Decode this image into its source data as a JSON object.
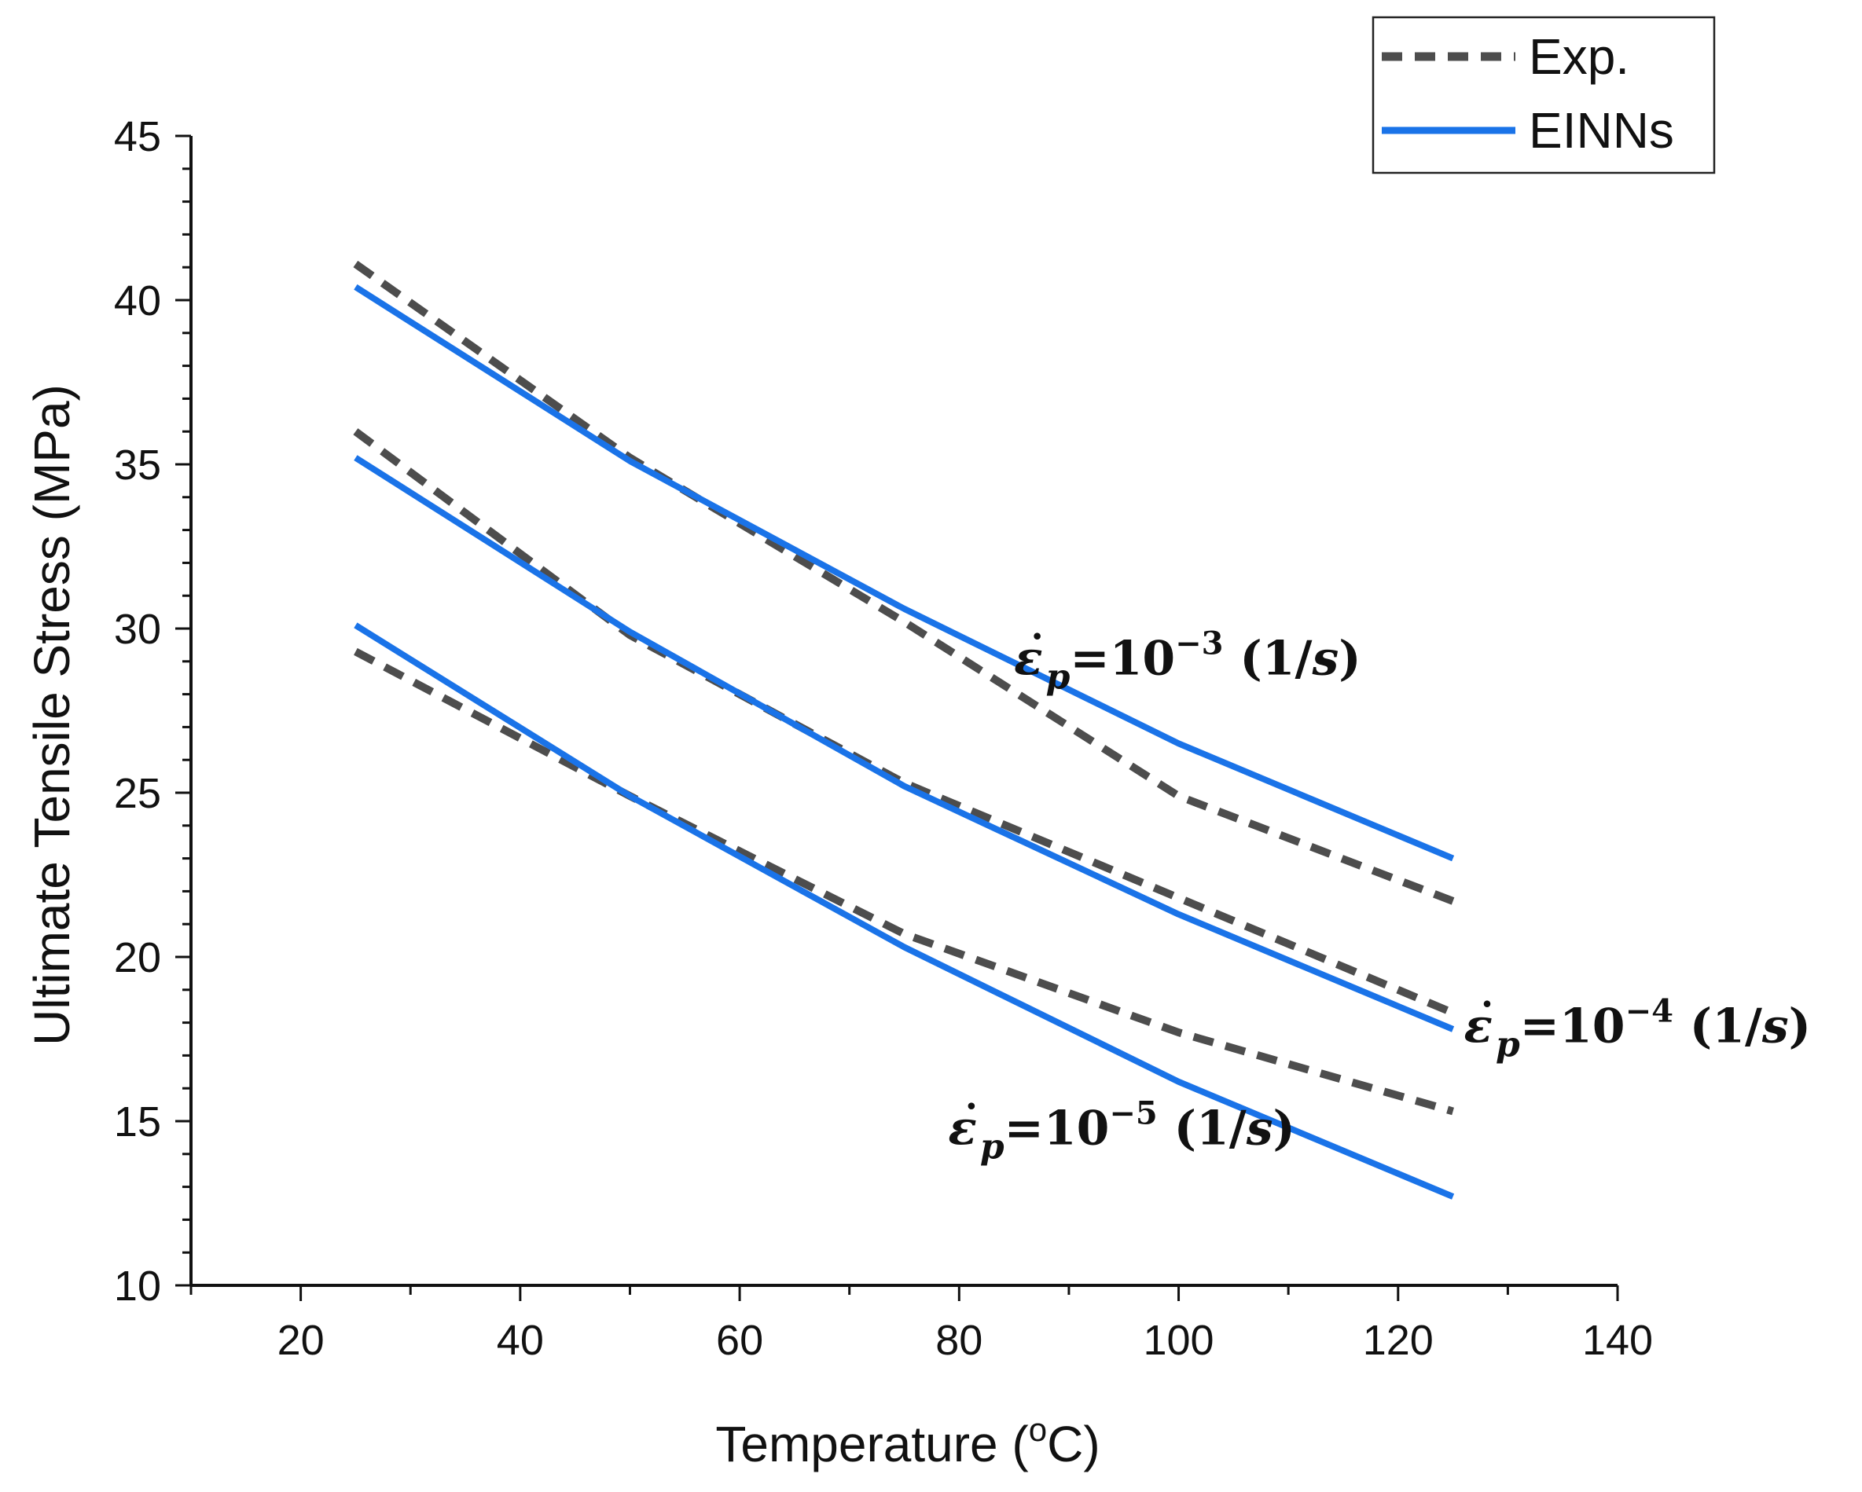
{
  "chart_data": {
    "type": "line",
    "title": "",
    "xlabel": "Temperature (",
    "xlabel_sup": "o",
    "xlabel_unit": "C)",
    "ylabel": "Ultimate Tensile Stress (MPa)",
    "xlim": [
      10,
      140
    ],
    "ylim": [
      10,
      45
    ],
    "xticks": [
      20,
      40,
      60,
      80,
      100,
      120,
      140
    ],
    "yticks": [
      10,
      15,
      20,
      25,
      30,
      35,
      40,
      45
    ],
    "legend": {
      "position": "top-right",
      "entries": [
        {
          "label": "Exp.",
          "style": "dashed",
          "color": "#4d4d4d"
        },
        {
          "label": "EINNs",
          "style": "solid",
          "color": "#1a73e8"
        }
      ]
    },
    "series": [
      {
        "name": "Exp.",
        "group": "10^-3",
        "style": "dashed",
        "color": "#4d4d4d",
        "x": [
          25,
          50,
          75,
          100,
          125
        ],
        "y": [
          41.1,
          35.2,
          30.2,
          24.9,
          21.7
        ]
      },
      {
        "name": "EINNs",
        "group": "10^-3",
        "style": "solid",
        "color": "#1a73e8",
        "x": [
          25,
          50,
          75,
          100,
          125
        ],
        "y": [
          40.4,
          35.1,
          30.6,
          26.5,
          23.0
        ]
      },
      {
        "name": "Exp.",
        "group": "10^-4",
        "style": "dashed",
        "color": "#4d4d4d",
        "x": [
          25,
          50,
          75,
          100,
          125
        ],
        "y": [
          36.0,
          29.8,
          25.3,
          21.8,
          18.3
        ]
      },
      {
        "name": "EINNs",
        "group": "10^-4",
        "style": "solid",
        "color": "#1a73e8",
        "x": [
          25,
          50,
          75,
          100,
          125
        ],
        "y": [
          35.2,
          29.9,
          25.2,
          21.3,
          17.8
        ]
      },
      {
        "name": "Exp.",
        "group": "10^-5",
        "style": "dashed",
        "color": "#4d4d4d",
        "x": [
          25,
          50,
          75,
          100,
          125
        ],
        "y": [
          29.3,
          24.9,
          20.7,
          17.7,
          15.3
        ]
      },
      {
        "name": "EINNs",
        "group": "10^-5",
        "style": "solid",
        "color": "#1a73e8",
        "x": [
          25,
          50,
          75,
          100,
          125
        ],
        "y": [
          30.1,
          24.9,
          20.3,
          16.2,
          12.7
        ]
      }
    ],
    "annotations": [
      {
        "var": "ε",
        "dot": "˙",
        "sub": "p",
        "eq": "=10",
        "exp": "−3",
        "unit": " (1/",
        "unit_var": "s",
        "close": ")",
        "anchor_x": 85,
        "anchor_y": 28.6
      },
      {
        "var": "ε",
        "dot": "˙",
        "sub": "p",
        "eq": "=10",
        "exp": "−4",
        "unit": " (1/",
        "unit_var": "s",
        "close": ")",
        "anchor_x": 126,
        "anchor_y": 17.4
      },
      {
        "var": "ε",
        "dot": "˙",
        "sub": "p",
        "eq": "=10",
        "exp": "−5",
        "unit": " (1/",
        "unit_var": "s",
        "close": ")",
        "anchor_x": 79,
        "anchor_y": 14.3
      }
    ]
  }
}
